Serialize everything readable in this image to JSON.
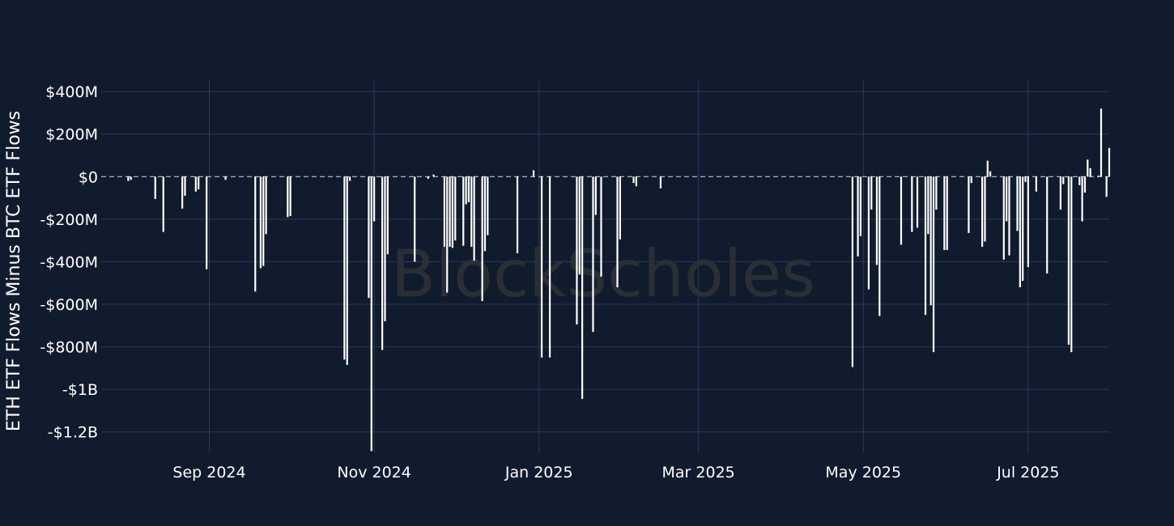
{
  "chart_data": {
    "type": "bar",
    "ylabel": "ETH ETF Flows Minus BTC ETF Flows",
    "y_unit": "USD millions",
    "ylim": [
      -1300,
      450
    ],
    "xlim": [
      "2024-07-23",
      "2025-07-31"
    ],
    "grid": true,
    "x_ticks": [
      {
        "date": "2024-09-01",
        "label": "Sep 2024"
      },
      {
        "date": "2024-11-01",
        "label": "Nov 2024"
      },
      {
        "date": "2025-01-01",
        "label": "Jan 2025"
      },
      {
        "date": "2025-03-01",
        "label": "Mar 2025"
      },
      {
        "date": "2025-05-01",
        "label": "May 2025"
      },
      {
        "date": "2025-07-01",
        "label": "Jul 2025"
      }
    ],
    "y_ticks": [
      {
        "value": 400,
        "label": "$400M"
      },
      {
        "value": 200,
        "label": "$200M"
      },
      {
        "value": 0,
        "label": "$0"
      },
      {
        "value": -200,
        "label": "-$200M"
      },
      {
        "value": -400,
        "label": "-$400M"
      },
      {
        "value": -600,
        "label": "-$600M"
      },
      {
        "value": -800,
        "label": "-$800M"
      },
      {
        "value": -1000,
        "label": "-$1B"
      },
      {
        "value": -1200,
        "label": "-$1.2B"
      }
    ],
    "watermark": "BlockScholes",
    "bars": [
      {
        "date": "2024-08-02",
        "value": -20
      },
      {
        "date": "2024-08-03",
        "value": -15
      },
      {
        "date": "2024-08-12",
        "value": -105
      },
      {
        "date": "2024-08-15",
        "value": -260
      },
      {
        "date": "2024-08-22",
        "value": -150
      },
      {
        "date": "2024-08-23",
        "value": -90
      },
      {
        "date": "2024-08-27",
        "value": -70
      },
      {
        "date": "2024-08-28",
        "value": -60
      },
      {
        "date": "2024-08-31",
        "value": -435
      },
      {
        "date": "2024-09-07",
        "value": -15
      },
      {
        "date": "2024-09-18",
        "value": -540
      },
      {
        "date": "2024-09-20",
        "value": -430
      },
      {
        "date": "2024-09-21",
        "value": -420
      },
      {
        "date": "2024-09-22",
        "value": -270
      },
      {
        "date": "2024-09-30",
        "value": -190
      },
      {
        "date": "2024-10-01",
        "value": -185
      },
      {
        "date": "2024-10-21",
        "value": -860
      },
      {
        "date": "2024-10-22",
        "value": -885
      },
      {
        "date": "2024-10-23",
        "value": -20
      },
      {
        "date": "2024-10-30",
        "value": -570
      },
      {
        "date": "2024-10-31",
        "value": -1290
      },
      {
        "date": "2024-11-01",
        "value": -210
      },
      {
        "date": "2024-11-04",
        "value": -815
      },
      {
        "date": "2024-11-05",
        "value": -680
      },
      {
        "date": "2024-11-06",
        "value": -365
      },
      {
        "date": "2024-11-16",
        "value": -400
      },
      {
        "date": "2024-11-21",
        "value": -10
      },
      {
        "date": "2024-11-23",
        "value": 10
      },
      {
        "date": "2024-11-27",
        "value": -330
      },
      {
        "date": "2024-11-28",
        "value": -545
      },
      {
        "date": "2024-11-29",
        "value": -330
      },
      {
        "date": "2024-11-30",
        "value": -335
      },
      {
        "date": "2024-12-01",
        "value": -300
      },
      {
        "date": "2024-12-04",
        "value": -325
      },
      {
        "date": "2024-12-05",
        "value": -130
      },
      {
        "date": "2024-12-06",
        "value": -120
      },
      {
        "date": "2024-12-07",
        "value": -330
      },
      {
        "date": "2024-12-08",
        "value": -395
      },
      {
        "date": "2024-12-11",
        "value": -585
      },
      {
        "date": "2024-12-12",
        "value": -350
      },
      {
        "date": "2024-12-13",
        "value": -275
      },
      {
        "date": "2024-12-24",
        "value": -360
      },
      {
        "date": "2024-12-30",
        "value": 30
      },
      {
        "date": "2025-01-02",
        "value": -850
      },
      {
        "date": "2025-01-05",
        "value": -850
      },
      {
        "date": "2025-01-15",
        "value": -695
      },
      {
        "date": "2025-01-16",
        "value": -460
      },
      {
        "date": "2025-01-17",
        "value": -1045
      },
      {
        "date": "2025-01-21",
        "value": -730
      },
      {
        "date": "2025-01-22",
        "value": -180
      },
      {
        "date": "2025-01-24",
        "value": -470
      },
      {
        "date": "2025-01-30",
        "value": -520
      },
      {
        "date": "2025-01-31",
        "value": -295
      },
      {
        "date": "2025-02-05",
        "value": -30
      },
      {
        "date": "2025-02-06",
        "value": -45
      },
      {
        "date": "2025-02-15",
        "value": -55
      },
      {
        "date": "2025-04-27",
        "value": -895
      },
      {
        "date": "2025-04-29",
        "value": -375
      },
      {
        "date": "2025-04-30",
        "value": -280
      },
      {
        "date": "2025-05-03",
        "value": -530
      },
      {
        "date": "2025-05-04",
        "value": -155
      },
      {
        "date": "2025-05-06",
        "value": -415
      },
      {
        "date": "2025-05-07",
        "value": -655
      },
      {
        "date": "2025-05-15",
        "value": -320
      },
      {
        "date": "2025-05-19",
        "value": -260
      },
      {
        "date": "2025-05-21",
        "value": -240
      },
      {
        "date": "2025-05-24",
        "value": -650
      },
      {
        "date": "2025-05-25",
        "value": -270
      },
      {
        "date": "2025-05-26",
        "value": -605
      },
      {
        "date": "2025-05-27",
        "value": -825
      },
      {
        "date": "2025-05-28",
        "value": -155
      },
      {
        "date": "2025-05-31",
        "value": -345
      },
      {
        "date": "2025-06-01",
        "value": -345
      },
      {
        "date": "2025-06-09",
        "value": -265
      },
      {
        "date": "2025-06-10",
        "value": -30
      },
      {
        "date": "2025-06-14",
        "value": -330
      },
      {
        "date": "2025-06-15",
        "value": -305
      },
      {
        "date": "2025-06-16",
        "value": 75
      },
      {
        "date": "2025-06-17",
        "value": 25
      },
      {
        "date": "2025-06-22",
        "value": -390
      },
      {
        "date": "2025-06-23",
        "value": -210
      },
      {
        "date": "2025-06-24",
        "value": -370
      },
      {
        "date": "2025-06-27",
        "value": -255
      },
      {
        "date": "2025-06-28",
        "value": -520
      },
      {
        "date": "2025-06-29",
        "value": -490
      },
      {
        "date": "2025-06-30",
        "value": -25
      },
      {
        "date": "2025-07-01",
        "value": -425
      },
      {
        "date": "2025-07-04",
        "value": -70
      },
      {
        "date": "2025-07-08",
        "value": -455
      },
      {
        "date": "2025-07-13",
        "value": -155
      },
      {
        "date": "2025-07-14",
        "value": -35
      },
      {
        "date": "2025-07-16",
        "value": -790
      },
      {
        "date": "2025-07-17",
        "value": -825
      },
      {
        "date": "2025-07-20",
        "value": -40
      },
      {
        "date": "2025-07-21",
        "value": -210
      },
      {
        "date": "2025-07-22",
        "value": -75
      },
      {
        "date": "2025-07-23",
        "value": 80
      },
      {
        "date": "2025-07-24",
        "value": 40
      },
      {
        "date": "2025-07-27",
        "value": 5
      },
      {
        "date": "2025-07-28",
        "value": 320
      },
      {
        "date": "2025-07-30",
        "value": -95
      },
      {
        "date": "2025-07-31",
        "value": 135
      }
    ]
  }
}
